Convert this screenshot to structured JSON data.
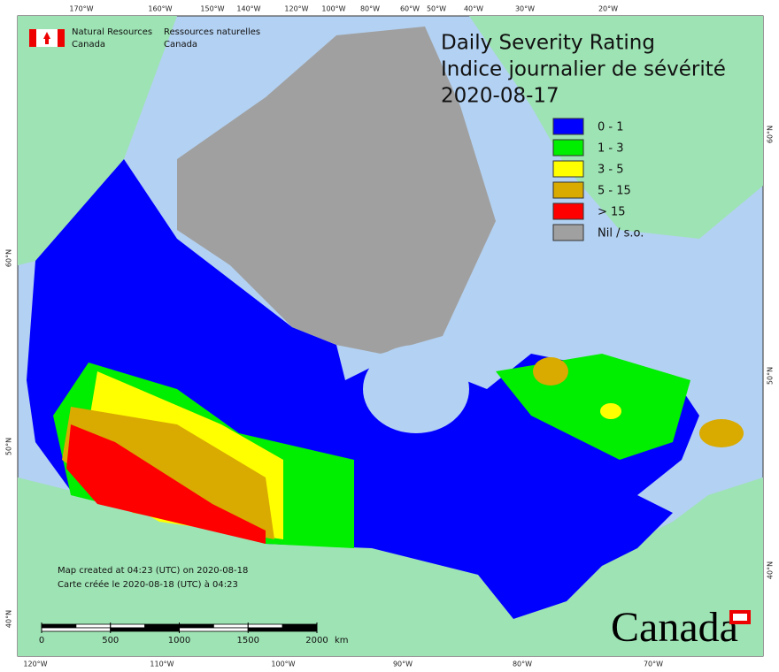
{
  "header": {
    "agency_en": [
      "Natural Resources",
      "Canada"
    ],
    "agency_fr": [
      "Ressources naturelles",
      "Canada"
    ]
  },
  "title": [
    "Daily Severity Rating",
    "Indice journalier de sévérité",
    "2020-08-17"
  ],
  "legend": [
    {
      "label": "0 - 1",
      "color": "#0000ff"
    },
    {
      "label": "1 - 3",
      "color": "#00ee00"
    },
    {
      "label": "3 - 5",
      "color": "#ffff00"
    },
    {
      "label": "5 - 15",
      "color": "#d9aa00"
    },
    {
      "label": "> 15",
      "color": "#ff0000"
    },
    {
      "label": "Nil / s.o.",
      "color": "#a0a0a0"
    }
  ],
  "graticule": {
    "top": [
      "170°W",
      "160°W",
      "150°W",
      "140°W",
      "120°W",
      "100°W",
      "80°W",
      "60°W",
      "50°W",
      "40°W",
      "30°W",
      "20°W"
    ],
    "bottom": [
      "120°W",
      "110°W",
      "100°W",
      "90°W",
      "80°W",
      "70°W"
    ],
    "left": [
      "60°N",
      "50°N",
      "40°N"
    ],
    "right": [
      "60°N",
      "50°N",
      "40°N"
    ]
  },
  "footer": [
    "Map created at 04:23 (UTC) on 2020-08-18",
    "Carte créée le 2020-08-18 (UTC) à 04:23"
  ],
  "scale_bar": {
    "ticks": [
      0,
      500,
      1000,
      1500,
      2000
    ],
    "unit": "km"
  },
  "wordmark": "Canada"
}
